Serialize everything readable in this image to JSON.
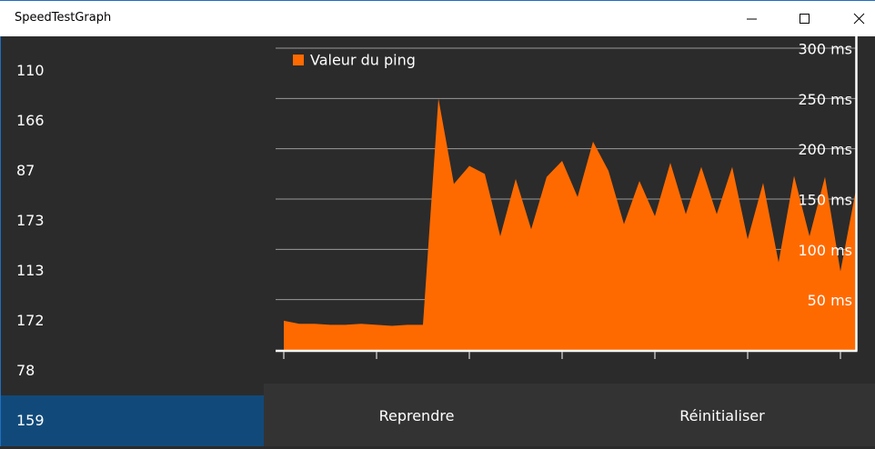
{
  "window": {
    "title": "SpeedTestGraph"
  },
  "history": {
    "items": [
      110,
      166,
      87,
      173,
      113,
      172,
      78,
      159
    ],
    "selected_index": 7
  },
  "chart_data": {
    "type": "area",
    "x": [
      0,
      1,
      2,
      3,
      4,
      5,
      6,
      7,
      8,
      9,
      10,
      11,
      12,
      13,
      14,
      15,
      16,
      17,
      18,
      19,
      20,
      21,
      22,
      23,
      24,
      25,
      26,
      27,
      28,
      29,
      30,
      31,
      32,
      33,
      34,
      35,
      36,
      37
    ],
    "series": [
      {
        "name": "Valeur du ping",
        "color": "#ff6a00",
        "values": [
          29,
          26,
          26,
          25,
          25,
          26,
          25,
          24,
          25,
          25,
          250,
          165,
          183,
          175,
          113,
          170,
          120,
          172,
          188,
          152,
          207,
          178,
          125,
          168,
          133,
          186,
          135,
          182,
          135,
          182,
          110,
          166,
          87,
          173,
          113,
          172,
          78,
          159
        ]
      }
    ],
    "xlim": [
      0,
      37
    ],
    "xticks": [
      0,
      6,
      12,
      18,
      24,
      30,
      36
    ],
    "ylim": [
      0,
      300
    ],
    "yticks": [
      {
        "value": 50,
        "label": "50 ms"
      },
      {
        "value": 100,
        "label": "100 ms"
      },
      {
        "value": 150,
        "label": "150 ms"
      },
      {
        "value": 200,
        "label": "200 ms"
      },
      {
        "value": 250,
        "label": "250 ms"
      },
      {
        "value": 300,
        "label": "300 ms"
      }
    ],
    "grid": true,
    "legend": "top-left"
  },
  "buttons": [
    "Reprendre",
    "Réinitialiser"
  ]
}
